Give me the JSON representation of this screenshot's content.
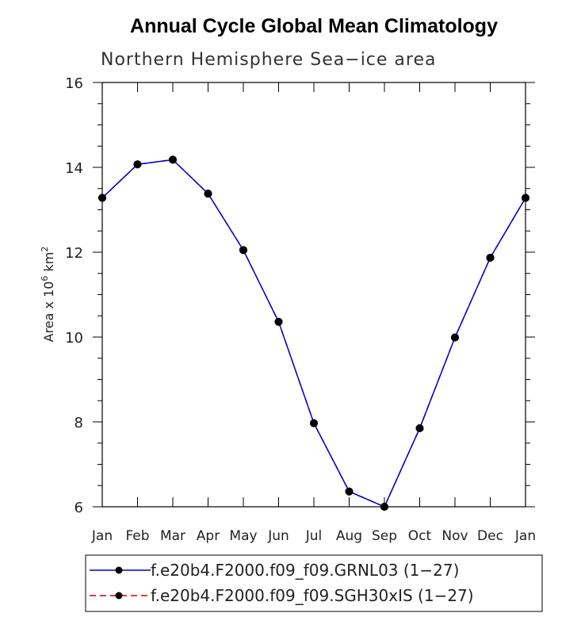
{
  "chart_data": {
    "type": "line",
    "title": "Annual Cycle Global Mean Climatology",
    "subtitle": "Northern Hemisphere Sea−ice area",
    "ylabel_prefix": "Area x 10",
    "ylabel_exp1": "6",
    "ylabel_unit": " km",
    "ylabel_exp2": "2",
    "categories": [
      "Jan",
      "Feb",
      "Mar",
      "Apr",
      "May",
      "Jun",
      "Jul",
      "Aug",
      "Sep",
      "Oct",
      "Nov",
      "Dec",
      "Jan"
    ],
    "ylim": [
      6,
      16
    ],
    "yticks": [
      6,
      8,
      10,
      12,
      14,
      16
    ],
    "series": [
      {
        "name": "f.e20b4.F2000.f09_f09.GRNL03 (1−27)",
        "color": "#0000cc",
        "dash": "solid",
        "values": [
          13.28,
          14.07,
          14.18,
          13.38,
          12.05,
          10.36,
          7.97,
          6.36,
          6.0,
          7.85,
          9.99,
          11.87,
          13.28
        ]
      },
      {
        "name": "f.e20b4.F2000.f09_f09.SGH30xIS (1−27)",
        "color": "#cc0000",
        "dash": "dashed",
        "values": [
          13.28,
          14.07,
          14.18,
          13.38,
          12.05,
          10.36,
          7.97,
          6.36,
          6.0,
          7.85,
          9.99,
          11.87,
          13.28
        ]
      }
    ],
    "grid": false,
    "legend_position": "bottom"
  }
}
